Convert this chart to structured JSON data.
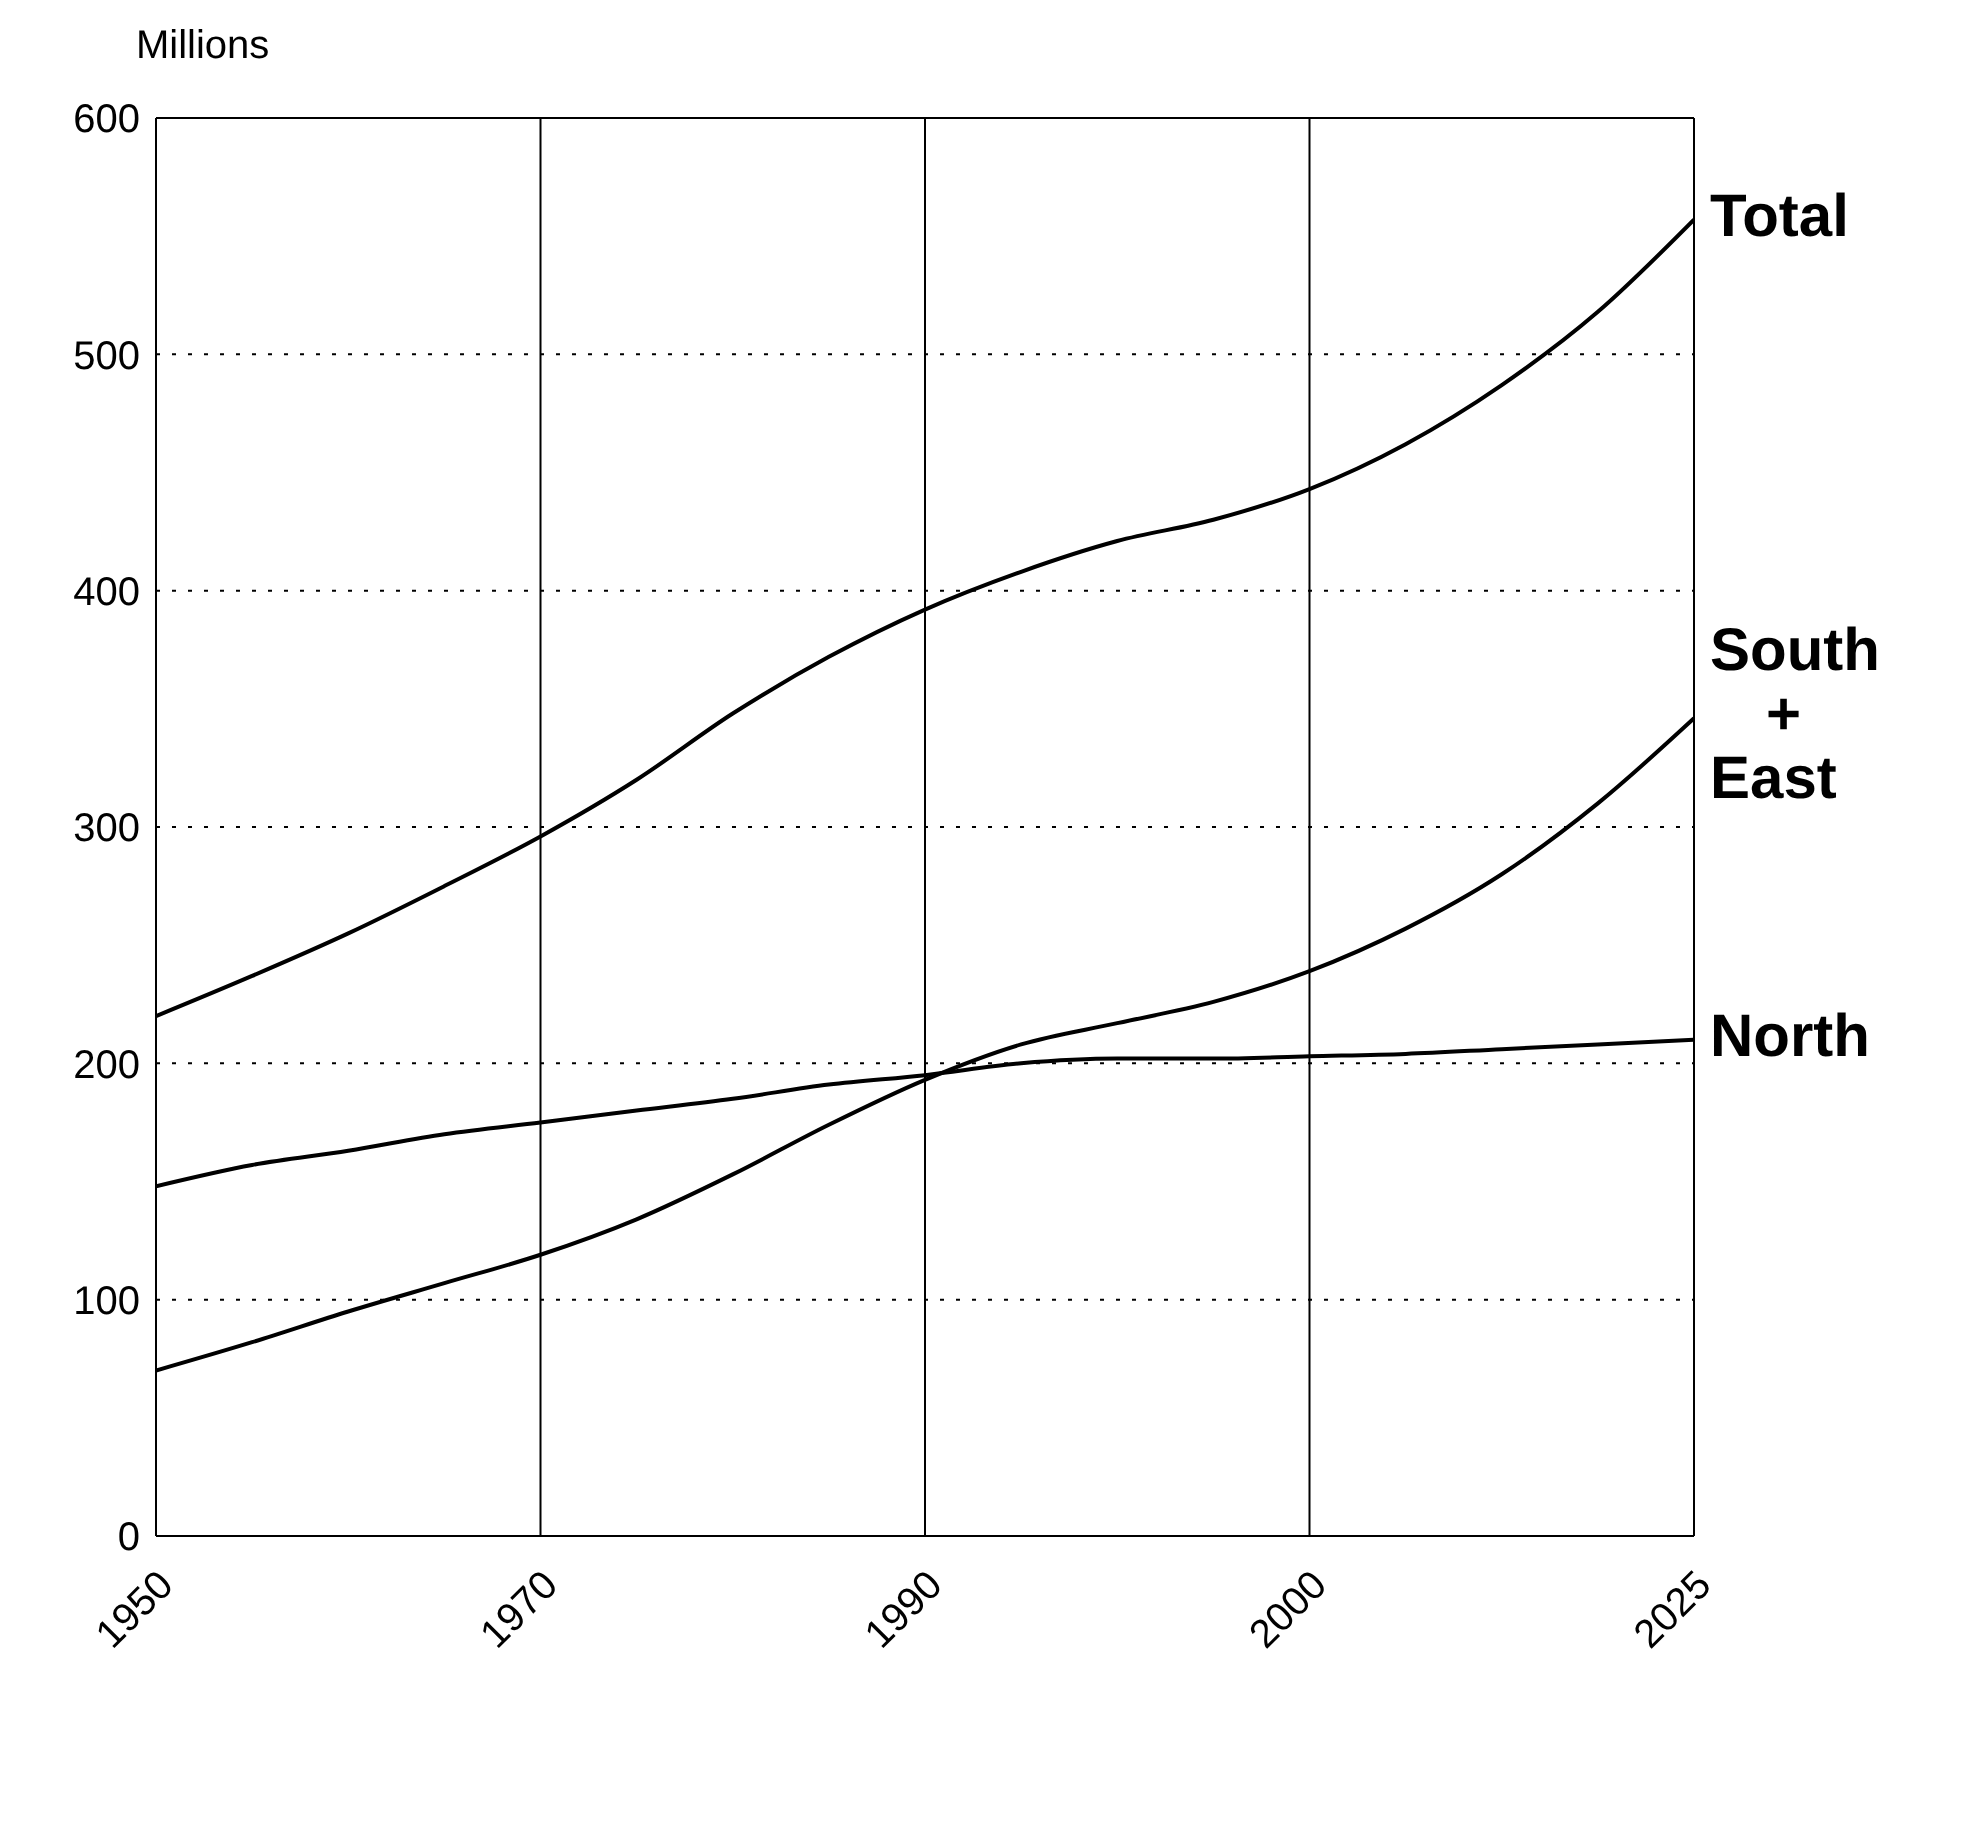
{
  "chart_data": {
    "type": "line",
    "ylabel": "Millions",
    "categories": [
      "1950",
      null,
      null,
      null,
      "1970",
      null,
      null,
      null,
      "1990",
      null,
      null,
      null,
      "2000",
      null,
      null,
      null,
      "2025"
    ],
    "series": [
      {
        "name": "Total",
        "color": "#000000",
        "values": [
          220,
          237,
          255,
          275,
          296,
          320,
          348,
          372,
          392,
          408,
          421,
          430,
          443,
          462,
          487,
          518,
          557
        ]
      },
      {
        "name": "South + East",
        "color": "#000000",
        "values": [
          70,
          82,
          95,
          107,
          119,
          134,
          153,
          174,
          193,
          208,
          217,
          226,
          239,
          257,
          280,
          310,
          346
        ]
      },
      {
        "name": "North",
        "color": "#000000",
        "values": [
          148,
          157,
          163,
          170,
          175,
          180,
          185,
          191,
          195,
          200,
          202,
          202,
          203,
          204,
          206,
          208,
          210
        ]
      }
    ],
    "ylim": [
      0,
      600
    ],
    "yticks": [
      0,
      100,
      200,
      300,
      400,
      500,
      600
    ],
    "grid": true,
    "marker": "none",
    "line_style": "solid"
  }
}
